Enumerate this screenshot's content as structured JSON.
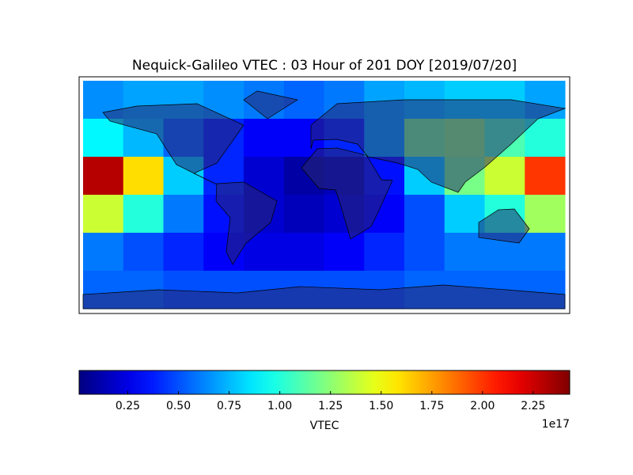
{
  "chart_data": {
    "type": "heatmap",
    "title": "Nequick-Galileo VTEC : 03 Hour of 201 DOY [2019/07/20]",
    "values": [
      [
        0.65,
        0.7,
        0.7,
        0.65,
        0.6,
        0.55,
        0.6,
        0.7,
        0.75,
        0.8,
        0.8,
        0.7
      ],
      [
        0.9,
        0.75,
        0.55,
        0.4,
        0.3,
        0.3,
        0.4,
        0.7,
        1.2,
        1.25,
        1.1,
        1.0
      ],
      [
        2.3,
        1.6,
        0.8,
        0.4,
        0.2,
        0.1,
        0.15,
        0.35,
        0.8,
        1.2,
        1.4,
        2.0
      ],
      [
        1.4,
        1.0,
        0.6,
        0.35,
        0.2,
        0.15,
        0.2,
        0.3,
        0.5,
        0.8,
        1.0,
        1.3
      ],
      [
        0.6,
        0.5,
        0.4,
        0.3,
        0.25,
        0.25,
        0.3,
        0.4,
        0.5,
        0.6,
        0.6,
        0.6
      ],
      [
        0.55,
        0.55,
        0.5,
        0.5,
        0.5,
        0.5,
        0.5,
        0.5,
        0.55,
        0.55,
        0.55,
        0.55
      ]
    ],
    "colormap": "jet",
    "clim": [
      0.01,
      2.43
    ],
    "cticks": [
      0.25,
      {
        "value": 0.5,
        "label": "0.50"
      },
      0.75,
      {
        "value": 1,
        "label": "1.00"
      },
      1.25,
      {
        "value": 1.5,
        "label": "1.50"
      },
      1.75,
      {
        "value": 2,
        "label": "2.00"
      },
      2.25
    ],
    "clabel": "VTEC",
    "offset_label": "1e17"
  }
}
